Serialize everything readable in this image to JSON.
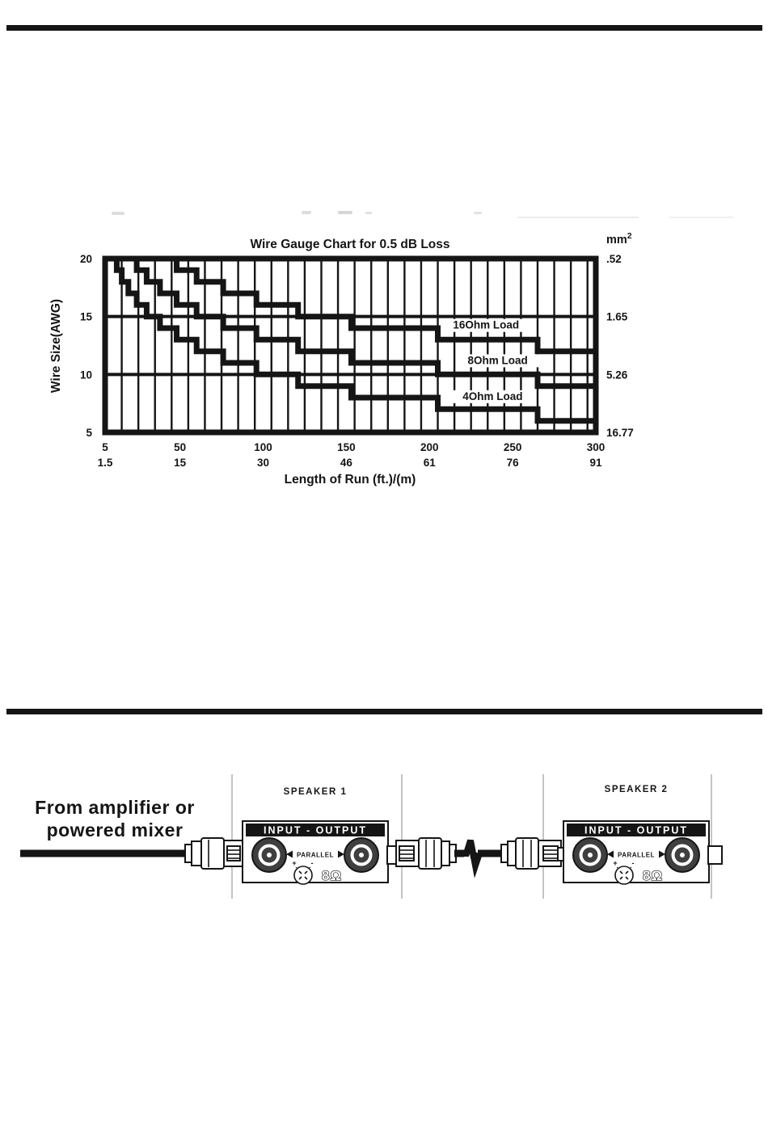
{
  "colors": {
    "ink": "#151515",
    "connector_gray": "#3f3f3f",
    "divider_gray": "#c4c4c4"
  },
  "chart_labels": {
    "right_unit": "mm",
    "right_unit_sup": "2"
  },
  "chart_data": {
    "type": "line",
    "title": "Wire Gauge Chart for 0.5 dB Loss",
    "xlabel": "Length of Run (ft.)/(m)",
    "ylabel": "Wire Size(AWG)",
    "x_range_ft": [
      5,
      300
    ],
    "y_range_awg": [
      5,
      20
    ],
    "x_ticks_ft": [
      "5",
      "50",
      "100",
      "150",
      "200",
      "250",
      "300"
    ],
    "x_ticks_m": [
      "1.5",
      "15",
      "30",
      "46",
      "61",
      "76",
      "91"
    ],
    "y_ticks_awg": [
      "20",
      "15",
      "10",
      "5"
    ],
    "y_ticks_mm2": [
      ".52",
      "1.65",
      "5.26",
      "16.77"
    ],
    "grid": {
      "vertical_start_ft": 15,
      "vertical_every_ft": 10,
      "horizontal_at_awg": [
        15,
        10
      ]
    },
    "series": [
      {
        "name": "16Ohm Load",
        "label_ft": 234,
        "label_awg": 13.95,
        "steps": [
          [
            5,
            20
          ],
          [
            48,
            19
          ],
          [
            60,
            18
          ],
          [
            76,
            17
          ],
          [
            96,
            16
          ],
          [
            121,
            15
          ],
          [
            153,
            14
          ],
          [
            205,
            13
          ],
          [
            265,
            12
          ],
          [
            300,
            12
          ]
        ]
      },
      {
        "name": "8Ohm Load",
        "label_ft": 241,
        "label_awg": 10.9,
        "steps": [
          [
            5,
            20
          ],
          [
            24,
            19
          ],
          [
            30,
            18
          ],
          [
            38,
            17
          ],
          [
            48,
            16
          ],
          [
            60,
            15
          ],
          [
            76,
            14
          ],
          [
            96,
            13
          ],
          [
            121,
            12
          ],
          [
            153,
            11
          ],
          [
            205,
            10
          ],
          [
            265,
            9
          ],
          [
            300,
            9
          ]
        ]
      },
      {
        "name": "4Ohm Load",
        "label_ft": 238,
        "label_awg": 7.8,
        "steps": [
          [
            5,
            20
          ],
          [
            12,
            19
          ],
          [
            15,
            18
          ],
          [
            19,
            17
          ],
          [
            24,
            16
          ],
          [
            30,
            15
          ],
          [
            38,
            14
          ],
          [
            48,
            13
          ],
          [
            60,
            12
          ],
          [
            76,
            11
          ],
          [
            96,
            10
          ],
          [
            121,
            9
          ],
          [
            153,
            8
          ],
          [
            205,
            7
          ],
          [
            265,
            6
          ],
          [
            300,
            6
          ]
        ]
      }
    ]
  },
  "diagram": {
    "source_label": [
      "From amplifier or",
      "powered mixer"
    ],
    "speakers": [
      {
        "label": "SPEAKER 1"
      },
      {
        "label": "SPEAKER 2"
      }
    ],
    "panel": {
      "header": "INPUT - OUTPUT",
      "parallel": "PARALLEL",
      "impedance": "8Ω",
      "plus": "+",
      "minus": "-"
    }
  }
}
